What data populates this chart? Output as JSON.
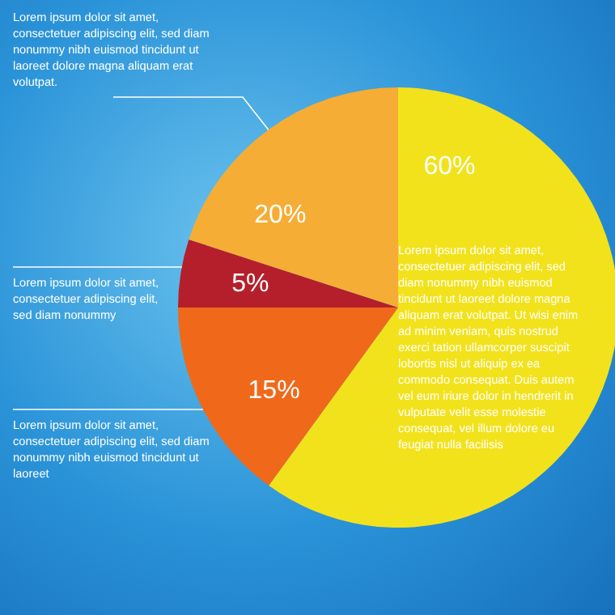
{
  "chart_data": {
    "type": "pie",
    "categories": [
      null,
      null,
      null,
      null
    ],
    "values": [
      60,
      15,
      5,
      20
    ],
    "colors": [
      "#f2e21c",
      "#f0691a",
      "#b51f2b",
      "#f5ad35"
    ],
    "value_labels": [
      "60%",
      "15%",
      "5%",
      "20%"
    ],
    "legend": false,
    "annotations": [
      "Lorem ipsum dolor sit amet, consectetuer adipiscing elit, sed diam nonummy nibh euismod tincidunt ut laoreet dolore magna aliquam erat volutpat.",
      "Lorem ipsum dolor sit amet, consectetuer adipiscing elit, sed diam nonummy",
      "Lorem ipsum dolor sit amet, consectetuer adipiscing elit, sed diam nonummy nibh euismod tincidunt ut laoreet",
      "Lorem ipsum dolor sit amet, consectetuer adipiscing elit, sed diam nonummy nibh euismod tincidunt ut laoreet dolore magna aliquam erat volutpat. Ut wisi enim ad minim veniam, quis nostrud exerci tation ullamcorper suscipit lobortis nisl ut aliquip ex ea commodo consequat. Duis autem vel eum iriure dolor in hendrerit in vulputate velit esse molestie consequat, vel illum dolore eu feugiat nulla facilisis"
    ]
  }
}
